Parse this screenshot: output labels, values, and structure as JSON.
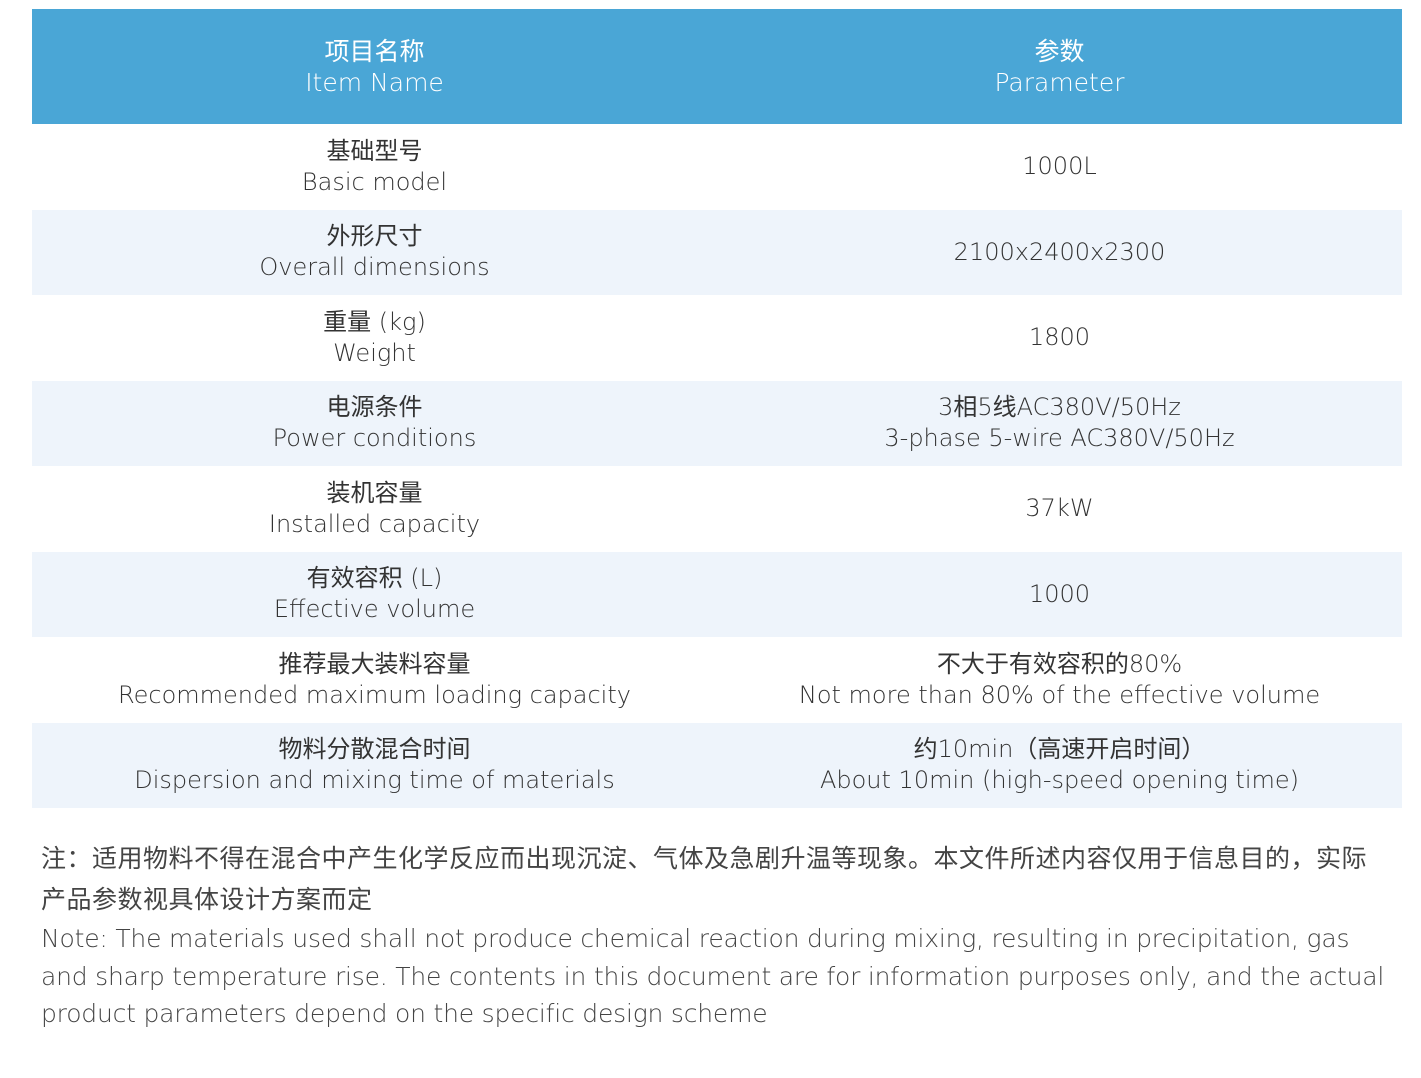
{
  "header": {
    "item_zh": "项目名称",
    "item_en": "Item Name",
    "param_zh": "参数",
    "param_en": "Parameter"
  },
  "rows": [
    {
      "item_zh": "基础型号",
      "item_en": "Basic model",
      "value_zh": "",
      "value_en": "1000L"
    },
    {
      "item_zh": "外形尺寸",
      "item_en": "Overall dimensions",
      "value_zh": "",
      "value_en": "2100x2400x2300"
    },
    {
      "item_zh": "重量 (kg)",
      "item_en": "Weight",
      "value_zh": "",
      "value_en": "1800"
    },
    {
      "item_zh": "电源条件",
      "item_en": "Power conditions",
      "value_zh": "3相5线AC380V/50Hz",
      "value_en": "3-phase 5-wire AC380V/50Hz"
    },
    {
      "item_zh": "装机容量",
      "item_en": "Installed capacity",
      "value_zh": "",
      "value_en": "37kW"
    },
    {
      "item_zh": "有效容积 (L)",
      "item_en": "Effective volume",
      "value_zh": "",
      "value_en": "1000"
    },
    {
      "item_zh": "推荐最大装料容量",
      "item_en": "Recommended maximum loading capacity",
      "value_zh": "不大于有效容积的80%",
      "value_en": "Not more than 80% of the effective volume"
    },
    {
      "item_zh": "物料分散混合时间",
      "item_en": "Dispersion and mixing time of materials",
      "value_zh": "约10min（高速开启时间）",
      "value_en": "About 10min (high-speed opening time)"
    }
  ],
  "note": {
    "zh": "注：适用物料不得在混合中产生化学反应而出现沉淀、气体及急剧升温等现象。本文件所述内容仅用于信息目的，实际产品参数视具体设计方案而定",
    "en": "Note: The materials used shall not produce chemical reaction during mixing, resulting in precipitation, gas and sharp temperature rise. The contents in this document are for information purposes only, and the actual product parameters depend on the specific design scheme"
  },
  "colors": {
    "header_bg": "#4aa6d6",
    "stripe_bg": "#eef4fb"
  }
}
